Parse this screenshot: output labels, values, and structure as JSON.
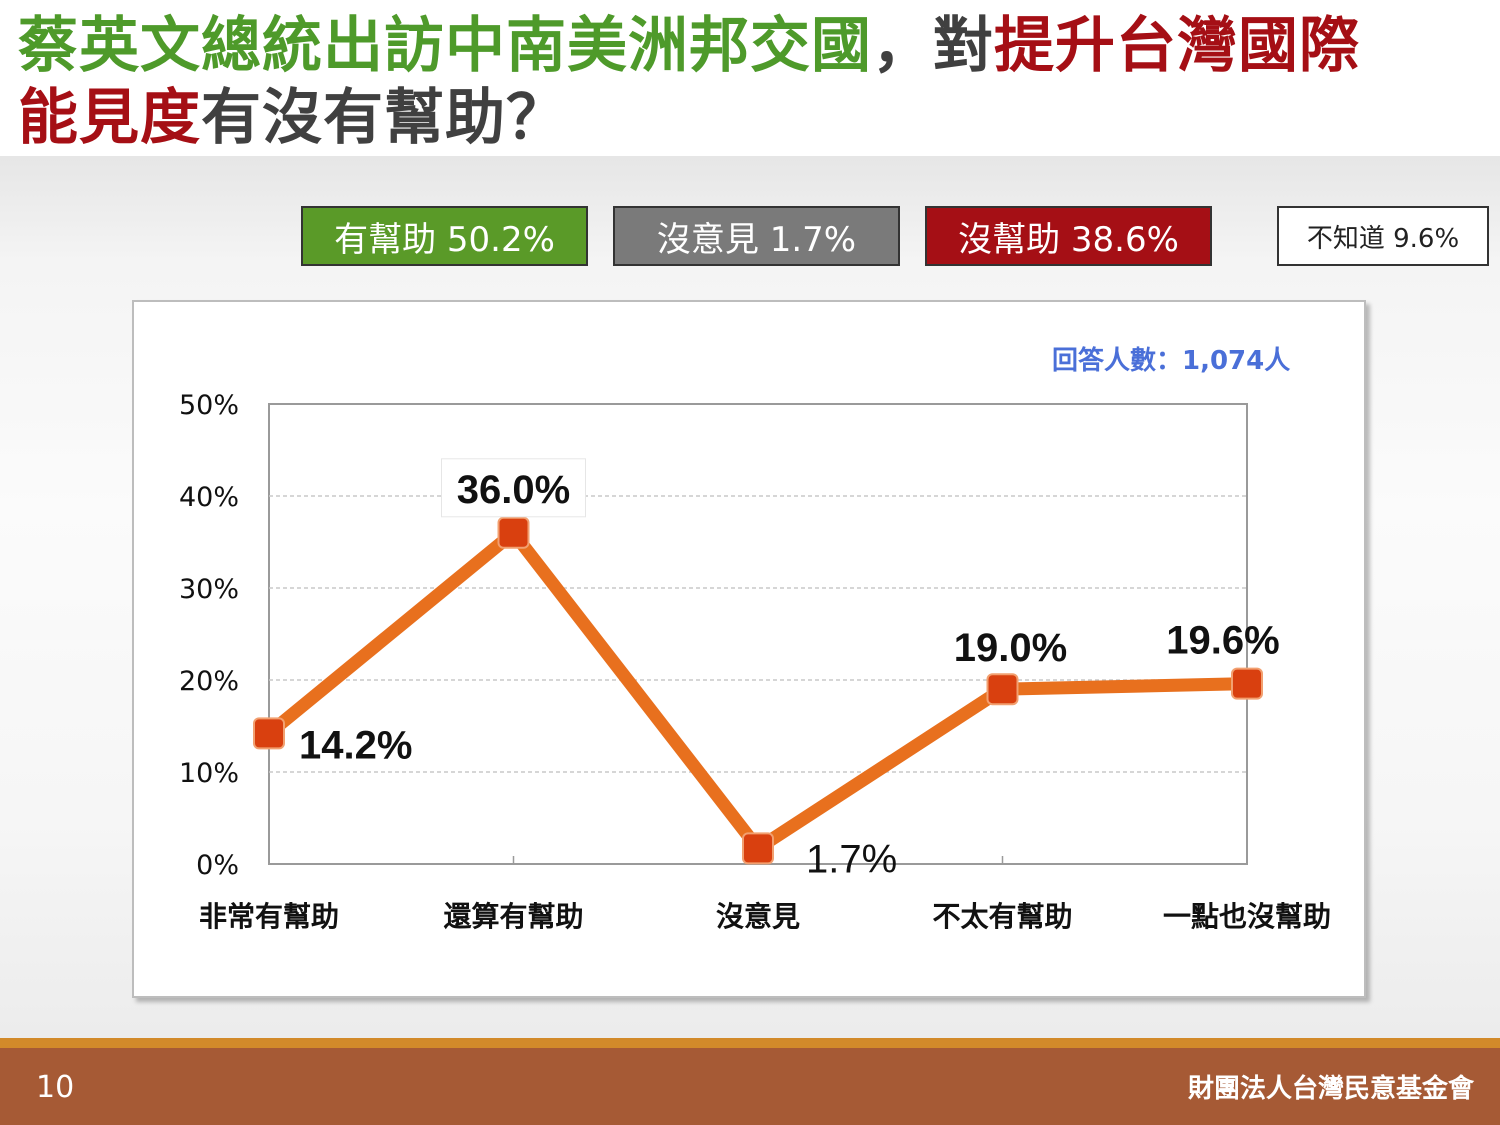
{
  "title": {
    "part1": "蔡英文總統出訪中南美洲邦交國",
    "part2": "，對",
    "part3": "提升台灣國際",
    "part4": "能見度",
    "part5": "有沒有幫助？"
  },
  "summary": [
    {
      "label": "有幫助 50.2%",
      "color": "#5a9a28"
    },
    {
      "label": "沒意見 1.7%",
      "color": "#7a7a7a"
    },
    {
      "label": "沒幫助 38.6%",
      "color": "#a50f15"
    },
    {
      "label": "不知道 9.6%",
      "color": "#ffffff"
    }
  ],
  "respondents": "回答人數：1,074人",
  "chart_data": {
    "type": "line",
    "categories": [
      "非常有幫助",
      "還算有幫助",
      "沒意見",
      "不太有幫助",
      "一點也沒幫助"
    ],
    "values": [
      14.2,
      36.0,
      1.7,
      19.0,
      19.6
    ],
    "data_labels": [
      "14.2%",
      "36.0%",
      "1.7%",
      "19.0%",
      "19.6%"
    ],
    "ylim": [
      0,
      50
    ],
    "yticks": [
      0,
      10,
      20,
      30,
      40,
      50
    ],
    "ytick_labels": [
      "0%",
      "10%",
      "20%",
      "30%",
      "40%",
      "50%"
    ],
    "grid": true,
    "line_color": "#e8701e",
    "marker_color": "#d9400f"
  },
  "footer": {
    "page_number": "10",
    "organization": "財團法人台灣民意基金會"
  }
}
